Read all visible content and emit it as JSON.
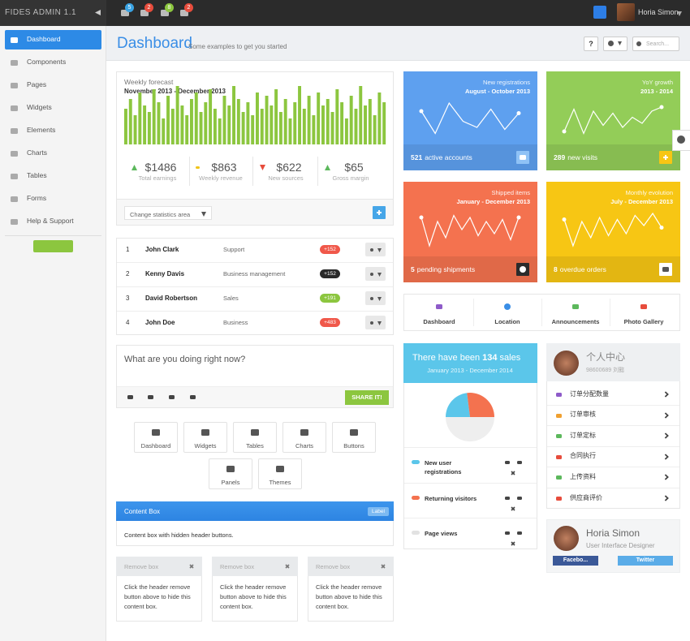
{
  "topbar": {
    "brand": "FIDES ADMIN 1.1",
    "badges": [
      5,
      2,
      8,
      2
    ],
    "user": "Horia Simon"
  },
  "sidebar": {
    "items": [
      "Dashboard",
      "Components",
      "Pages",
      "Widgets",
      "Elements",
      "Charts",
      "Tables",
      "Forms",
      "Help & Support"
    ]
  },
  "header": {
    "title": "Dashboard",
    "subtitle": "Some examples to get you started",
    "help": "?",
    "search_placeholder": "Search..."
  },
  "forecast": {
    "title": "Weekly forecast",
    "period": "November 2013 - December 2013",
    "bars": [
      55,
      70,
      45,
      80,
      60,
      50,
      85,
      65,
      40,
      75,
      55,
      90,
      60,
      45,
      70,
      80,
      50,
      65,
      85,
      55,
      40,
      75,
      60,
      90,
      70,
      50,
      65,
      45,
      80,
      55,
      75,
      60,
      85,
      50,
      70,
      40,
      65,
      90,
      55,
      75,
      45,
      80,
      60,
      70,
      50,
      85,
      65,
      40,
      75,
      55,
      90,
      60,
      70,
      45,
      80,
      65
    ],
    "stats": [
      {
        "value": "$1486",
        "label": "Total earnings"
      },
      {
        "value": "$863",
        "label": "Weekly revenue"
      },
      {
        "value": "$622",
        "label": "New sources"
      },
      {
        "value": "$65",
        "label": "Gross margin"
      }
    ],
    "select": "Change statistics area"
  },
  "people": {
    "rows": [
      [
        1,
        "John Clark",
        "Support",
        "+152"
      ],
      [
        2,
        "Kenny Davis",
        "Business management",
        "+152"
      ],
      [
        3,
        "David Robertson",
        "Sales",
        "+191"
      ],
      [
        4,
        "John Doe",
        "Business",
        "+483"
      ]
    ]
  },
  "status": {
    "placeholder": "What are you doing right now?",
    "button": "SHARE IT!"
  },
  "shortcuts": [
    "Dashboard",
    "Widgets",
    "Tables",
    "Charts",
    "Buttons",
    "Panels",
    "Themes"
  ],
  "content_box": {
    "title": "Content Box",
    "label": "Label",
    "body": "Content box with hidden header buttons."
  },
  "remove_boxes": [
    {
      "title": "Remove box",
      "body": "Click the header remove button above to hide this content box."
    },
    {
      "title": "Remove box",
      "body": "Click the header remove button above to hide this content box."
    },
    {
      "title": "Remove box",
      "body": "Click the header remove button above to hide this content box."
    }
  ],
  "tiles": [
    {
      "title": "New registrations",
      "period": "August - October 2013",
      "count": 521,
      "label": "active accounts",
      "line": [
        70,
        15,
        90,
        45,
        30,
        75,
        25,
        65
      ]
    },
    {
      "title": "YoY growth",
      "period": "2013 - 2014",
      "count": 289,
      "label": "new visits",
      "line": [
        20,
        75,
        15,
        70,
        35,
        65,
        30,
        55,
        40,
        70,
        80
      ]
    },
    {
      "title": "Shipped items",
      "period": "January - December 2013",
      "count": 5,
      "label": "pending shipments",
      "line": [
        80,
        10,
        70,
        30,
        85,
        50,
        80,
        35,
        70,
        40,
        75,
        25,
        80
      ]
    },
    {
      "title": "Monthly evolution",
      "period": "July - December 2013",
      "count": 8,
      "label": "overdue orders",
      "line": [
        75,
        10,
        70,
        30,
        80,
        35,
        75,
        40,
        85,
        60,
        90,
        55
      ]
    }
  ],
  "tabs": [
    "Dashboard",
    "Location",
    "Announcements",
    "Photo Gallery"
  ],
  "sales": {
    "prefix": "There have been",
    "count": 134,
    "suffix": "sales",
    "period": "January 2013 - December 2014",
    "pie": [
      {
        "name": "New user registrations",
        "value": 23
      },
      {
        "name": "Returning visitors",
        "value": 27
      },
      {
        "name": "Page views",
        "value": 50
      }
    ]
  },
  "profile_menu": {
    "title": "个人中心",
    "subtitle": "98600689 刘懿",
    "items": [
      "订单分配数量",
      "订单审核",
      "订单定标",
      "合同执行",
      "上传资料",
      "供应商评价"
    ]
  },
  "profile": {
    "name": "Horia Simon",
    "role": "User Interface Designer",
    "buttons": [
      "Facebo...",
      "Twitter"
    ]
  }
}
